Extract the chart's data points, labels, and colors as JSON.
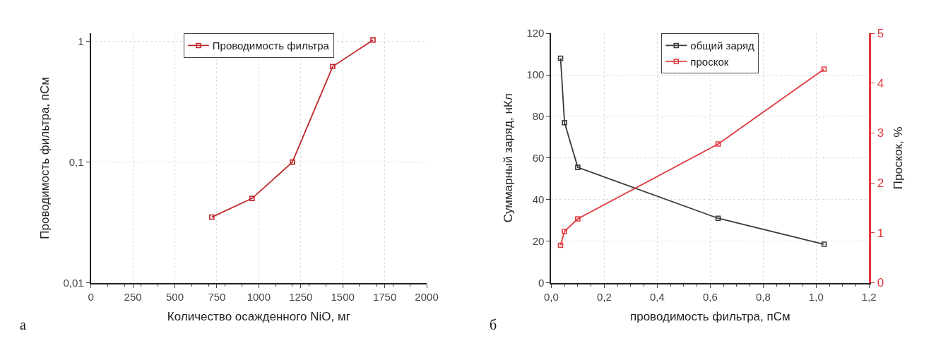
{
  "chart_data": [
    {
      "type": "line",
      "xlabel": "Количество осажденного NiO, мг",
      "ylabel": "Проводимость фильтра, пСм",
      "annotations": [
        "а"
      ],
      "x": [
        720,
        960,
        1200,
        1440,
        1680
      ],
      "series": [
        {
          "name": "Проводимость фильтра",
          "color": "#c0282d",
          "values": [
            0.035,
            0.05,
            0.1,
            0.62,
            1.03
          ]
        }
      ],
      "log": true,
      "xlim": [
        0,
        2000
      ],
      "xticks": [
        0,
        250,
        500,
        750,
        1000,
        1250,
        1500,
        1750,
        2000
      ],
      "ylim": [
        0.01,
        1.17
      ],
      "yticks": [
        {
          "value": 0.01,
          "label": "0,01"
        },
        {
          "value": 0.1,
          "label": "0,1"
        },
        {
          "value": 1,
          "label": "1"
        }
      ],
      "grid": true,
      "legend": "top",
      "marker": "square",
      "line_style": "solid"
    },
    {
      "type": "line",
      "xlabel": "проводимость фильтра, пСм",
      "ylabel": "Суммарный заряд, нКл",
      "y2label": "Проскок, %",
      "annotations": [
        "б"
      ],
      "x": [
        0.035,
        0.05,
        0.1,
        0.63,
        1.03
      ],
      "series": [
        {
          "name": "общий заряд",
          "color": "#3a3a3a",
          "values": [
            108,
            77,
            55.5,
            31,
            18.5
          ]
        },
        {
          "name": "проскок",
          "color": "#e0393e",
          "values": [
            0.75,
            1.03,
            1.28,
            2.78,
            4.28
          ],
          "axis": "y2"
        }
      ],
      "xlim": [
        0,
        1.2
      ],
      "xticks": [
        {
          "value": 0,
          "label": "0,0"
        },
        {
          "value": 0.2,
          "label": "0,2"
        },
        {
          "value": 0.4,
          "label": "0,4"
        },
        {
          "value": 0.6,
          "label": "0,6"
        },
        {
          "value": 0.8,
          "label": "0,8"
        },
        {
          "value": 1,
          "label": "1,0"
        },
        {
          "value": 1.2,
          "label": "1,2"
        }
      ],
      "ylim": [
        0,
        120
      ],
      "yticks": [
        0,
        20,
        40,
        60,
        80,
        100,
        120
      ],
      "y2lim": [
        0,
        5
      ],
      "y2ticks": [
        0,
        1,
        2,
        3,
        4,
        5
      ],
      "grid": true,
      "legend": "top",
      "marker": "square",
      "line_style": "solid"
    }
  ]
}
